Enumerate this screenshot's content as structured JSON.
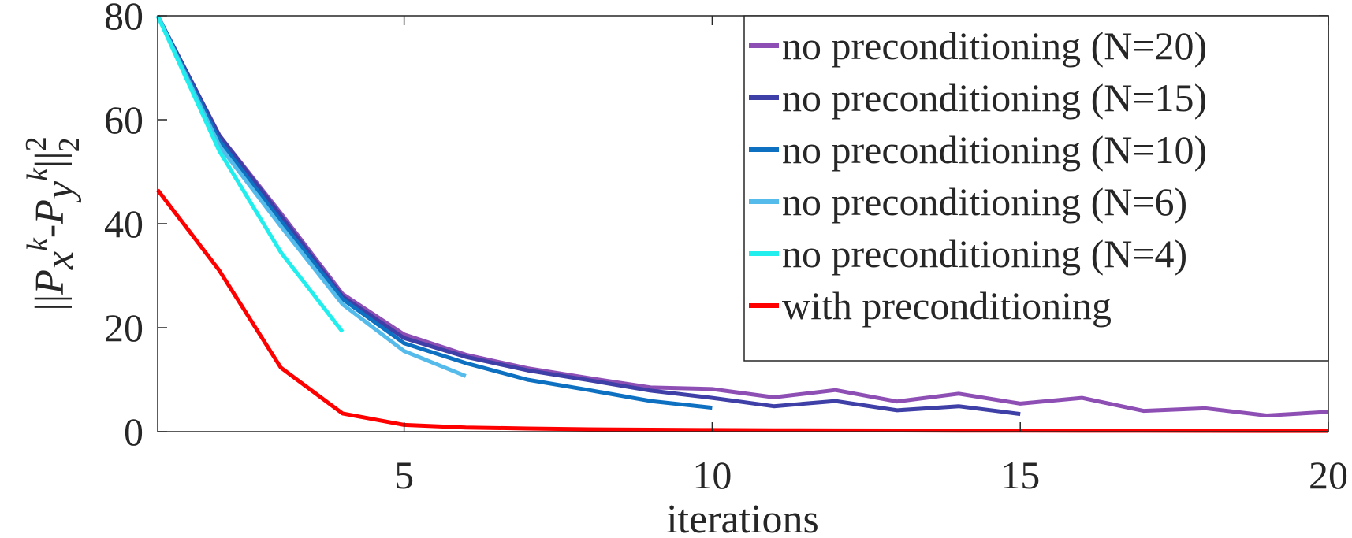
{
  "chart_data": {
    "type": "line",
    "title": "",
    "xlabel": "iterations",
    "ylabel_parts": {
      "norm_open": "||",
      "p1": "P",
      "sub1": "x",
      "sup1": "k",
      "minus": "-",
      "p2": "P",
      "sub2": "y",
      "sup2": "k",
      "norm_close": "||",
      "exp": "2",
      "sub": "2"
    },
    "xlim": [
      1,
      20
    ],
    "ylim": [
      0,
      80
    ],
    "xticks": [
      5,
      10,
      15,
      20
    ],
    "yticks": [
      0,
      20,
      40,
      60,
      80
    ],
    "grid": false,
    "legend_position": "top-right",
    "series": [
      {
        "name": "no preconditioning (N=20)",
        "color": "#8e4fb5",
        "x": [
          1,
          2,
          3,
          4,
          5,
          6,
          7,
          8,
          9,
          10,
          11,
          12,
          13,
          14,
          15,
          16,
          17,
          18,
          19,
          20
        ],
        "y": [
          80,
          57,
          42,
          26.5,
          18.7,
          14.8,
          12.2,
          10.3,
          8.5,
          8.2,
          6.6,
          8.0,
          5.8,
          7.3,
          5.4,
          6.5,
          4.0,
          4.5,
          3.1,
          3.8
        ]
      },
      {
        "name": "no preconditioning (N=15)",
        "color": "#3f3fa8",
        "x": [
          1,
          2,
          3,
          4,
          5,
          6,
          7,
          8,
          9,
          10,
          11,
          12,
          13,
          14,
          15
        ],
        "y": [
          80,
          57,
          41.5,
          26,
          18,
          14.4,
          11.8,
          9.9,
          7.9,
          6.5,
          4.9,
          5.9,
          4.1,
          4.9,
          3.4
        ]
      },
      {
        "name": "no preconditioning (N=10)",
        "color": "#0e70c0",
        "x": [
          1,
          2,
          3,
          4,
          5,
          6,
          7,
          8,
          9,
          10
        ],
        "y": [
          80,
          56,
          40.5,
          25.5,
          17,
          13.2,
          10,
          8,
          5.9,
          4.6
        ]
      },
      {
        "name": "no preconditioning (N=6)",
        "color": "#55bbea",
        "x": [
          1,
          2,
          3,
          4,
          5,
          6
        ],
        "y": [
          80,
          55,
          39.5,
          24.5,
          15.5,
          10.7
        ]
      },
      {
        "name": "no preconditioning (N=4)",
        "color": "#22eeee",
        "x": [
          1,
          2,
          3,
          4
        ],
        "y": [
          80,
          54,
          34.5,
          19.2
        ]
      },
      {
        "name": "with preconditioning",
        "color": "#ff0000",
        "x": [
          1,
          2,
          3,
          4,
          5,
          6,
          7,
          8,
          9,
          10,
          11,
          12,
          13,
          14,
          15,
          16,
          17,
          18,
          19,
          20
        ],
        "y": [
          46.5,
          31,
          12.3,
          3.5,
          1.3,
          0.8,
          0.6,
          0.45,
          0.38,
          0.32,
          0.28,
          0.25,
          0.22,
          0.2,
          0.18,
          0.17,
          0.16,
          0.15,
          0.14,
          0.13
        ]
      }
    ]
  }
}
